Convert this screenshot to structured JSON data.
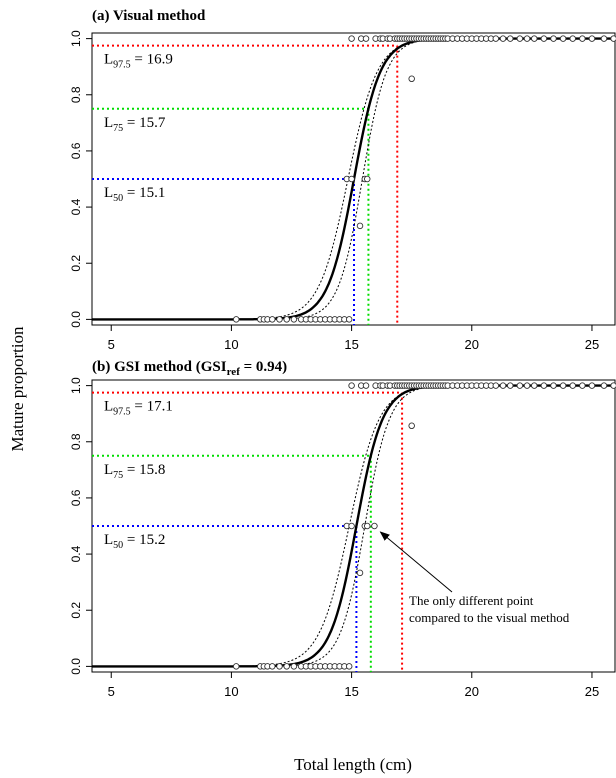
{
  "figure": {
    "ylabel": "Mature proportion",
    "xlabel": "Total length (cm)"
  },
  "chart_data": [
    {
      "type": "scatter",
      "title_prefix": "(a)",
      "title": "Visual method",
      "title_sub": "",
      "title_suffix": "",
      "x_ticks": [
        5,
        10,
        15,
        20,
        25
      ],
      "y_ticks": [
        "0.0",
        "0.2",
        "0.4",
        "0.6",
        "0.8",
        "1.0"
      ],
      "xlim": [
        4.2,
        26.0
      ],
      "ylim": [
        -0.02,
        1.02
      ],
      "logistic": {
        "L50": 15.1,
        "L75": 15.7,
        "L975": 16.9
      },
      "ci_lower": {
        "L50": 15.45,
        "slope": 2.0
      },
      "ci_upper": {
        "L50": 14.85,
        "slope": 1.65
      },
      "annotations": [
        {
          "key": "L975",
          "base": "L",
          "sub": "97.5",
          "text": " = 16.9",
          "p": 0.975,
          "x": 16.9,
          "color": "#ff0000"
        },
        {
          "key": "L75",
          "base": "L",
          "sub": "75",
          "text": " = 15.7",
          "p": 0.75,
          "x": 15.7,
          "color": "#00dd00"
        },
        {
          "key": "L50",
          "base": "L",
          "sub": "50",
          "text": " = 15.1",
          "p": 0.5,
          "x": 15.1,
          "color": "#0000ff"
        }
      ],
      "points_mature": [
        15.0,
        15.4,
        15.6,
        16.0,
        16.2,
        16.3,
        16.5,
        16.6,
        16.8,
        16.9,
        17.0,
        17.1,
        17.2,
        17.3,
        17.4,
        17.5,
        17.6,
        17.7,
        17.8,
        17.9,
        18.0,
        18.1,
        18.2,
        18.3,
        18.4,
        18.5,
        18.6,
        18.7,
        18.8,
        18.9,
        19.0,
        19.2,
        19.4,
        19.6,
        19.8,
        20.0,
        20.2,
        20.4,
        20.6,
        20.8,
        21.0,
        21.3,
        21.6,
        22.0,
        22.3,
        22.6,
        23.0,
        23.4,
        23.8,
        24.2,
        24.6,
        25.0,
        25.5,
        25.9
      ],
      "points_immature": [
        10.2,
        11.2,
        11.35,
        11.5,
        11.7,
        12.0,
        12.3,
        12.6,
        12.9,
        13.1,
        13.3,
        13.5,
        13.7,
        13.9,
        14.1,
        14.3,
        14.5,
        14.7
      ],
      "points_partial": [
        {
          "x": 14.8,
          "y": 0.5
        },
        {
          "x": 15.0,
          "y": 0.5
        },
        {
          "x": 15.55,
          "y": 0.5
        },
        {
          "x": 15.65,
          "y": 0.5
        },
        {
          "x": 15.35,
          "y": 0.333
        },
        {
          "x": 17.5,
          "y": 0.857
        },
        {
          "x": 14.9,
          "y": 0.0
        }
      ],
      "note": null
    },
    {
      "type": "scatter",
      "title_prefix": "(b)",
      "title": "GSI method (GSI",
      "title_sub": "ref",
      "title_suffix": " = 0.94)",
      "x_ticks": [
        5,
        10,
        15,
        20,
        25
      ],
      "y_ticks": [
        "0.0",
        "0.2",
        "0.4",
        "0.6",
        "0.8",
        "1.0"
      ],
      "xlim": [
        4.2,
        26.0
      ],
      "ylim": [
        -0.02,
        1.02
      ],
      "logistic": {
        "L50": 15.2,
        "L75": 15.8,
        "L975": 17.1
      },
      "ci_lower": {
        "L50": 15.55,
        "slope": 1.95
      },
      "ci_upper": {
        "L50": 14.9,
        "slope": 1.6
      },
      "annotations": [
        {
          "key": "L975",
          "base": "L",
          "sub": "97.5",
          "text": " = 17.1",
          "p": 0.975,
          "x": 17.1,
          "color": "#ff0000"
        },
        {
          "key": "L75",
          "base": "L",
          "sub": "75",
          "text": " = 15.8",
          "p": 0.75,
          "x": 15.8,
          "color": "#00dd00"
        },
        {
          "key": "L50",
          "base": "L",
          "sub": "50",
          "text": " = 15.2",
          "p": 0.5,
          "x": 15.2,
          "color": "#0000ff"
        }
      ],
      "points_mature": [
        15.0,
        15.4,
        15.6,
        16.0,
        16.2,
        16.3,
        16.5,
        16.6,
        16.8,
        16.9,
        17.0,
        17.1,
        17.2,
        17.3,
        17.4,
        17.5,
        17.6,
        17.7,
        17.8,
        17.9,
        18.0,
        18.1,
        18.2,
        18.3,
        18.4,
        18.5,
        18.6,
        18.7,
        18.8,
        18.9,
        19.0,
        19.2,
        19.4,
        19.6,
        19.8,
        20.0,
        20.2,
        20.4,
        20.6,
        20.8,
        21.0,
        21.3,
        21.6,
        22.0,
        22.3,
        22.6,
        23.0,
        23.4,
        23.8,
        24.2,
        24.6,
        25.0,
        25.5,
        25.9
      ],
      "points_immature": [
        10.2,
        11.2,
        11.35,
        11.5,
        11.7,
        12.0,
        12.3,
        12.6,
        12.9,
        13.1,
        13.3,
        13.5,
        13.7,
        13.9,
        14.1,
        14.3,
        14.5,
        14.7
      ],
      "points_partial": [
        {
          "x": 14.8,
          "y": 0.5
        },
        {
          "x": 15.0,
          "y": 0.5
        },
        {
          "x": 15.55,
          "y": 0.5
        },
        {
          "x": 15.65,
          "y": 0.5
        },
        {
          "x": 15.35,
          "y": 0.333
        },
        {
          "x": 17.5,
          "y": 0.857
        },
        {
          "x": 14.9,
          "y": 0.0
        },
        {
          "x": 15.95,
          "y": 0.5
        }
      ],
      "note": {
        "lines": [
          "The only different point",
          "compared to the visual method"
        ],
        "target": {
          "x": 15.95,
          "y": 0.5
        }
      }
    }
  ]
}
